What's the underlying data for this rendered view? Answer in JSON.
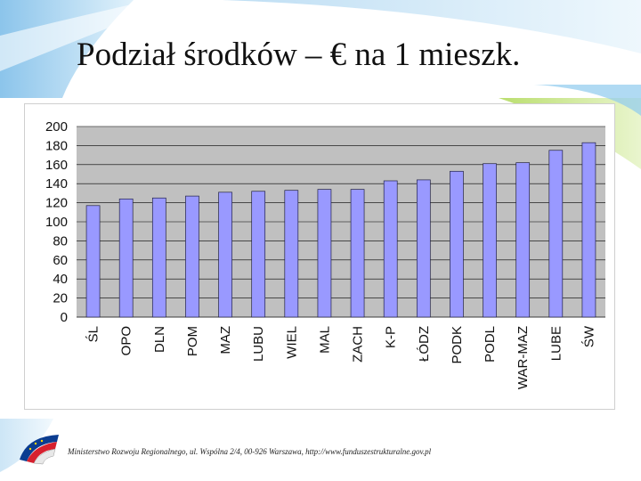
{
  "slide": {
    "title": "Podział środków – € na 1 mieszk.",
    "footer": "Ministerstwo Rozwoju Regionalnego, ul. Wspólna 2/4, 00-926 Warszawa, http://www.funduszestrukturalne.gov.pl"
  },
  "colors": {
    "bar_fill": "#9999ff",
    "bar_stroke": "#222244",
    "plot_background": "#c0c0c0",
    "gridline": "#000000",
    "decor_blue": "#5aa6dc",
    "decor_green": "#9ccd3c"
  },
  "icons": {
    "logo": "eu-flag-logo"
  },
  "chart_data": {
    "type": "bar",
    "title": "",
    "xlabel": "",
    "ylabel": "",
    "categories": [
      "ŚL",
      "OPO",
      "DLN",
      "POM",
      "MAZ",
      "LUBU",
      "WIEL",
      "MAL",
      "ZACH",
      "K-P",
      "ŁÓDZ",
      "PODK",
      "PODL",
      "WAR-MAZ",
      "LUBE",
      "ŚW"
    ],
    "values": [
      117,
      124,
      125,
      127,
      131,
      132,
      133,
      134,
      134,
      143,
      144,
      153,
      161,
      162,
      175,
      183
    ],
    "ylim": [
      0,
      200
    ],
    "yticks": [
      0,
      20,
      40,
      60,
      80,
      100,
      120,
      140,
      160,
      180,
      200
    ],
    "grid": true,
    "legend": "none"
  }
}
